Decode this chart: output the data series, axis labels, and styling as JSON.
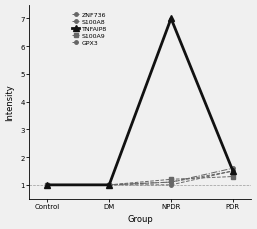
{
  "groups": [
    "Control",
    "DM",
    "NPDR",
    "PDR"
  ],
  "series": {
    "ZNF736": {
      "values": [
        1.0,
        1.0,
        1.0,
        1.5
      ],
      "color": "#666666",
      "marker": "o",
      "markersize": 2.5,
      "linewidth": 0.7,
      "linestyle": "--"
    },
    "S100A8": {
      "values": [
        1.0,
        1.0,
        1.1,
        1.5
      ],
      "color": "#666666",
      "marker": "o",
      "markersize": 2.5,
      "linewidth": 0.7,
      "linestyle": "--"
    },
    "TNFAIP8": {
      "values": [
        1.0,
        1.0,
        7.0,
        1.5
      ],
      "color": "#111111",
      "marker": "^",
      "markersize": 5,
      "linewidth": 2.0,
      "linestyle": "-"
    },
    "S100A9": {
      "values": [
        1.0,
        1.0,
        1.2,
        1.3
      ],
      "color": "#666666",
      "marker": "s",
      "markersize": 2.5,
      "linewidth": 0.7,
      "linestyle": "--"
    },
    "GPX3": {
      "values": [
        1.0,
        1.0,
        1.1,
        1.6
      ],
      "color": "#666666",
      "marker": "o",
      "markersize": 2.5,
      "linewidth": 0.7,
      "linestyle": "-."
    }
  },
  "xlabel": "Group",
  "ylabel": "Intensity",
  "ylim": [
    0.5,
    7.5
  ],
  "yticks": [
    1,
    2,
    3,
    4,
    5,
    6,
    7
  ],
  "title": "",
  "legend_fontsize": 4.5,
  "axis_fontsize": 6.0,
  "tick_fontsize": 5.0,
  "background_color": "#f0f0f0"
}
